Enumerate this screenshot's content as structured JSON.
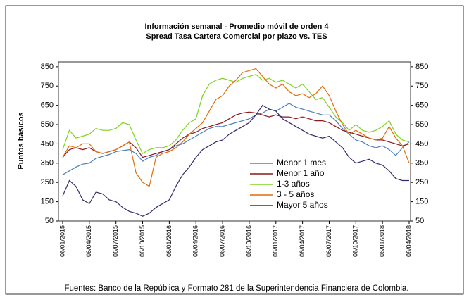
{
  "chart_data": {
    "type": "line",
    "title": "Información semanal - Promedio móvil de orden 4",
    "subtitle": "Spread Tasa Cartera Comercial por plazo vs. TES",
    "y_label": "Puntos básicos",
    "footer": "Fuentes: Banco de la República y Formato 281 de la Superintendencia Financiera de Colombia.",
    "categories": [
      "06/01/2015",
      null,
      null,
      null,
      "06/04/2015",
      null,
      null,
      null,
      "06/07/2015",
      null,
      null,
      null,
      "06/10/2015",
      null,
      null,
      null,
      "06/01/2016",
      null,
      null,
      null,
      "06/04/2016",
      null,
      null,
      null,
      "06/07/2016",
      null,
      null,
      null,
      "06/10/2016",
      null,
      null,
      null,
      "06/01/2017",
      null,
      null,
      null,
      "06/04/2017",
      null,
      null,
      null,
      "06/07/2017",
      null,
      null,
      null,
      "06/10/2017",
      null,
      null,
      null,
      "06/01/2018",
      null,
      null,
      null,
      "06/04/2018"
    ],
    "series": [
      {
        "name": "Menor 1 mes",
        "color": "#4a7ebb",
        "values": [
          290,
          310,
          330,
          345,
          350,
          375,
          385,
          395,
          410,
          415,
          420,
          400,
          360,
          380,
          390,
          410,
          420,
          440,
          450,
          470,
          490,
          510,
          530,
          540,
          540,
          550,
          560,
          570,
          580,
          600,
          610,
          630,
          620,
          640,
          660,
          640,
          630,
          620,
          610,
          600,
          600,
          570,
          530,
          500,
          470,
          460,
          440,
          430,
          440,
          420,
          390,
          430,
          460
        ]
      },
      {
        "name": "Menor 1 año",
        "color": "#8b1a1a",
        "values": [
          380,
          420,
          430,
          420,
          430,
          410,
          400,
          410,
          420,
          440,
          460,
          430,
          380,
          390,
          400,
          410,
          420,
          450,
          480,
          500,
          510,
          530,
          540,
          550,
          560,
          580,
          600,
          610,
          615,
          610,
          600,
          590,
          600,
          590,
          590,
          580,
          590,
          580,
          570,
          570,
          560,
          540,
          520,
          510,
          500,
          490,
          480,
          470,
          470,
          460,
          450,
          440,
          450
        ]
      },
      {
        "name": "1-3 años",
        "color": "#7ed321",
        "values": [
          420,
          520,
          480,
          490,
          500,
          530,
          520,
          520,
          530,
          560,
          550,
          470,
          400,
          420,
          430,
          430,
          440,
          470,
          520,
          560,
          580,
          700,
          760,
          780,
          790,
          780,
          770,
          790,
          800,
          810,
          780,
          790,
          770,
          780,
          760,
          740,
          760,
          720,
          680,
          690,
          640,
          590,
          560,
          520,
          550,
          520,
          510,
          520,
          540,
          570,
          500,
          470,
          460
        ]
      },
      {
        "name": "3 - 5 años",
        "color": "#e36c09",
        "values": [
          380,
          440,
          430,
          450,
          450,
          410,
          400,
          410,
          420,
          440,
          460,
          300,
          250,
          230,
          380,
          400,
          410,
          430,
          460,
          500,
          530,
          560,
          620,
          680,
          700,
          750,
          780,
          820,
          830,
          840,
          800,
          760,
          740,
          760,
          720,
          700,
          710,
          690,
          710,
          750,
          700,
          620,
          550,
          500,
          520,
          500,
          480,
          470,
          480,
          540,
          480,
          440,
          350
        ]
      },
      {
        "name": "Mayor 5 años",
        "color": "#3b2a6b",
        "values": [
          180,
          260,
          230,
          160,
          140,
          200,
          190,
          160,
          150,
          120,
          100,
          90,
          75,
          90,
          120,
          140,
          160,
          230,
          290,
          330,
          380,
          420,
          440,
          460,
          470,
          500,
          520,
          540,
          560,
          600,
          650,
          630,
          620,
          580,
          560,
          540,
          520,
          500,
          490,
          480,
          490,
          460,
          430,
          380,
          350,
          360,
          370,
          350,
          340,
          310,
          270,
          260,
          260
        ]
      }
    ],
    "ylim": [
      50,
      875
    ],
    "yticks": [
      50,
      150,
      250,
      350,
      450,
      550,
      650,
      750,
      850
    ],
    "grid": false
  }
}
